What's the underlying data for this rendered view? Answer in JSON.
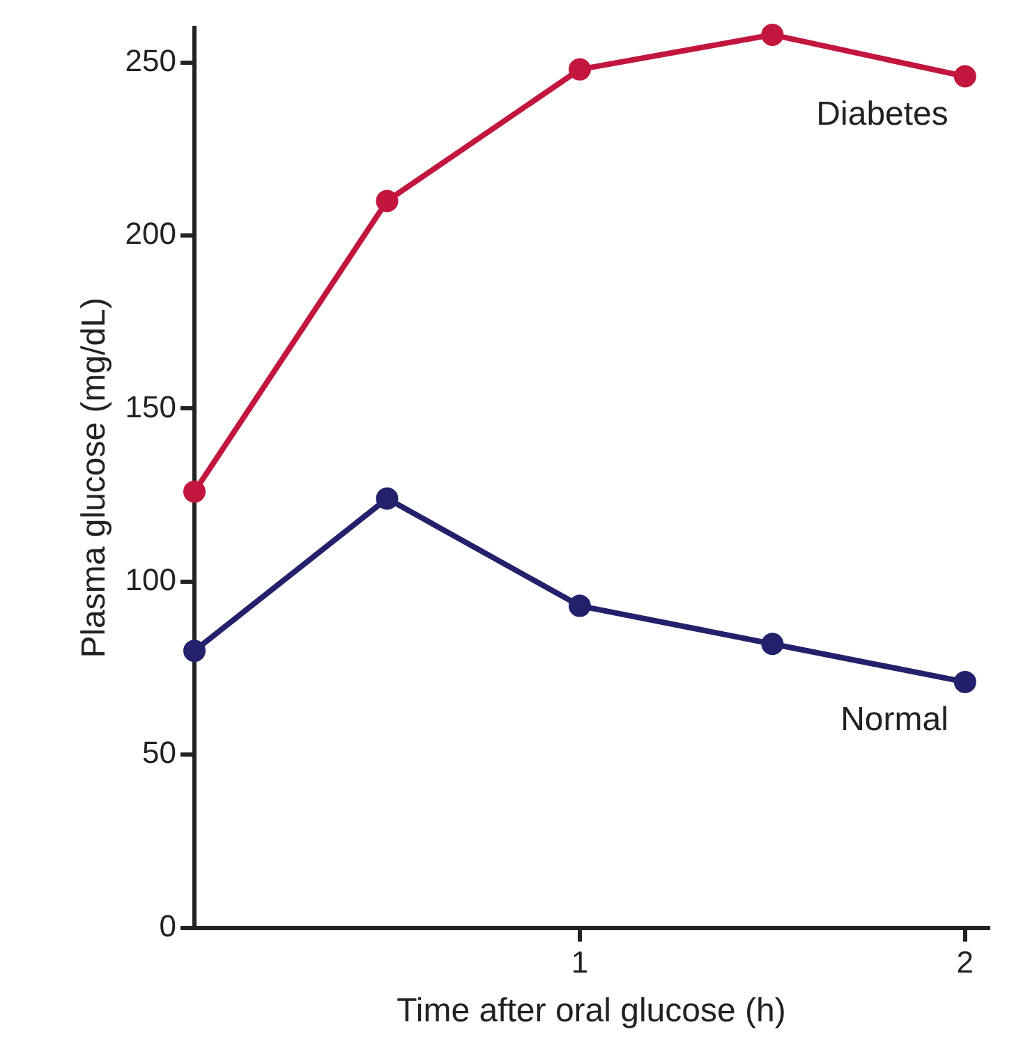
{
  "chart_data": {
    "type": "line",
    "xlabel": "Time after oral glucose (h)",
    "ylabel": "Plasma glucose (mg/dL)",
    "x": [
      0,
      0.5,
      1,
      1.5,
      2
    ],
    "series": [
      {
        "name": "Diabetes",
        "color": "#c2163f",
        "values": [
          126,
          210,
          248,
          258,
          246
        ]
      },
      {
        "name": "Normal",
        "color": "#23216b",
        "values": [
          80,
          124,
          93,
          82,
          71
        ]
      }
    ],
    "xlim": [
      0,
      2.06
    ],
    "xticks": [
      1,
      2
    ],
    "ylim": [
      0,
      260
    ],
    "yticks": [
      0,
      50,
      100,
      150,
      200,
      250
    ],
    "grid": false,
    "legend": false,
    "marker": "circle",
    "line_style": "solid"
  }
}
